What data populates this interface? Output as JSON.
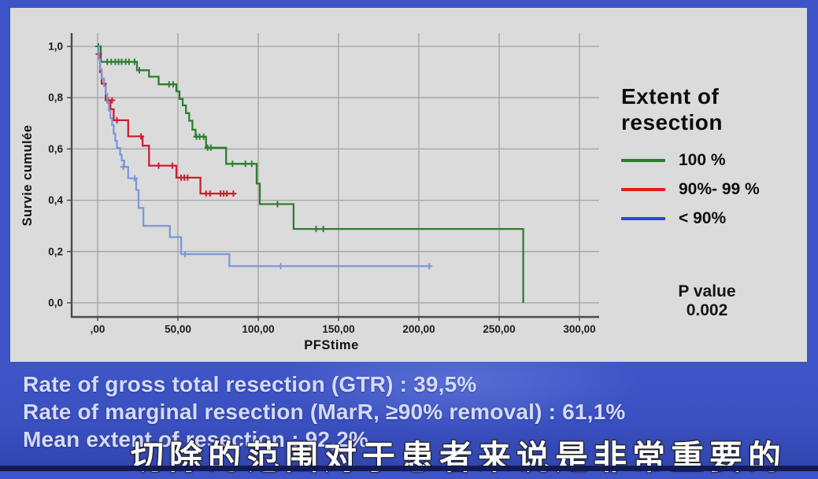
{
  "legend": {
    "title_lines": [
      "Extent of",
      "resection"
    ]
  },
  "pvalue": {
    "label": "P value",
    "value": "0.002"
  },
  "bottom": {
    "lines": [
      "Rate of gross total resection (GTR) : 39,5%",
      "Rate of marginal resection (MarR, ≥90% removal) : 61,1%",
      "Mean extent of resection : 92,2%"
    ],
    "subtitle": "切除的范围对于患者来说是非常重要的"
  },
  "chart_data": {
    "type": "line",
    "subtype": "kaplan-meier-survival",
    "title": "",
    "xlabel": "PFStime",
    "ylabel": "Survie cumulée",
    "xlim": [
      0,
      300
    ],
    "ylim": [
      0,
      1.0
    ],
    "grid": true,
    "legend_title": "Extent of resection",
    "legend_position": "right",
    "xticks": [
      ",00",
      "50,00",
      "100,00",
      "150,00",
      "200,00",
      "250,00",
      "300,00"
    ],
    "xtick_values": [
      0,
      50,
      100,
      150,
      200,
      250,
      300
    ],
    "yticks": [
      "1,0",
      "0,8",
      "0,6",
      "0,4",
      "0,2",
      "0,0"
    ],
    "ytick_values": [
      1.0,
      0.8,
      0.6,
      0.4,
      0.2,
      0.0
    ],
    "series": [
      {
        "name": "100 %",
        "color": "#2e7d31",
        "legend_color": "#2e7d31",
        "end_x": 265,
        "steps": [
          [
            0,
            1.0
          ],
          [
            2,
            0.94
          ],
          [
            24.5,
            0.907
          ],
          [
            32,
            0.882
          ],
          [
            38,
            0.852
          ],
          [
            49,
            0.825
          ],
          [
            51,
            0.795
          ],
          [
            53,
            0.77
          ],
          [
            55,
            0.74
          ],
          [
            57,
            0.71
          ],
          [
            59,
            0.675
          ],
          [
            61,
            0.648
          ],
          [
            67.5,
            0.605
          ],
          [
            80,
            0.542
          ],
          [
            99,
            0.465
          ],
          [
            101,
            0.385
          ],
          [
            122,
            0.288
          ],
          [
            265,
            0.0
          ]
        ],
        "censors": [
          [
            0.5,
            1.0
          ],
          [
            6,
            0.94
          ],
          [
            8.5,
            0.94
          ],
          [
            11,
            0.94
          ],
          [
            13,
            0.94
          ],
          [
            15,
            0.94
          ],
          [
            17.5,
            0.94
          ],
          [
            19.5,
            0.94
          ],
          [
            23,
            0.94
          ],
          [
            26,
            0.907
          ],
          [
            44.5,
            0.852
          ],
          [
            47,
            0.852
          ],
          [
            61.5,
            0.648
          ],
          [
            63.5,
            0.648
          ],
          [
            66,
            0.648
          ],
          [
            68.5,
            0.605
          ],
          [
            70.5,
            0.605
          ],
          [
            84,
            0.542
          ],
          [
            92,
            0.542
          ],
          [
            96,
            0.542
          ],
          [
            112,
            0.385
          ],
          [
            136,
            0.288
          ],
          [
            140.5,
            0.288
          ]
        ]
      },
      {
        "name": "90%- 99 %",
        "color": "#c9202f",
        "legend_color": "#e01d1d",
        "end_x": 86,
        "steps": [
          [
            0,
            1.0
          ],
          [
            0.7,
            0.97
          ],
          [
            1.5,
            0.9
          ],
          [
            2.5,
            0.855
          ],
          [
            5,
            0.79
          ],
          [
            8,
            0.755
          ],
          [
            10,
            0.712
          ],
          [
            19,
            0.649
          ],
          [
            28,
            0.613
          ],
          [
            32,
            0.535
          ],
          [
            49,
            0.488
          ],
          [
            64,
            0.426
          ]
        ],
        "censors": [
          [
            0.7,
            0.97
          ],
          [
            6.5,
            0.79
          ],
          [
            9,
            0.79
          ],
          [
            12,
            0.712
          ],
          [
            27,
            0.649
          ],
          [
            38,
            0.535
          ],
          [
            46.5,
            0.535
          ],
          [
            52,
            0.488
          ],
          [
            54,
            0.488
          ],
          [
            56,
            0.488
          ],
          [
            67.5,
            0.426
          ],
          [
            70,
            0.426
          ],
          [
            76.5,
            0.426
          ],
          [
            78.5,
            0.426
          ],
          [
            80.5,
            0.426
          ],
          [
            84.5,
            0.426
          ]
        ]
      },
      {
        "name": "< 90%",
        "color": "#7b99d9",
        "legend_color": "#2c46d8",
        "end_x": 207,
        "steps": [
          [
            0,
            1.0
          ],
          [
            0.7,
            0.95
          ],
          [
            1.5,
            0.91
          ],
          [
            2.5,
            0.875
          ],
          [
            4,
            0.845
          ],
          [
            5,
            0.815
          ],
          [
            6,
            0.78
          ],
          [
            7,
            0.75
          ],
          [
            8,
            0.72
          ],
          [
            9,
            0.693
          ],
          [
            10,
            0.66
          ],
          [
            11,
            0.632
          ],
          [
            12,
            0.604
          ],
          [
            14,
            0.578
          ],
          [
            15,
            0.555
          ],
          [
            16.5,
            0.53
          ],
          [
            19,
            0.486
          ],
          [
            24,
            0.44
          ],
          [
            25.5,
            0.37
          ],
          [
            28.5,
            0.3
          ],
          [
            45,
            0.256
          ],
          [
            52,
            0.19
          ],
          [
            82,
            0.143
          ]
        ],
        "censors": [
          [
            16,
            0.53
          ],
          [
            23,
            0.486
          ],
          [
            54.5,
            0.19
          ],
          [
            114,
            0.143
          ],
          [
            206.5,
            0.143
          ]
        ]
      }
    ]
  }
}
